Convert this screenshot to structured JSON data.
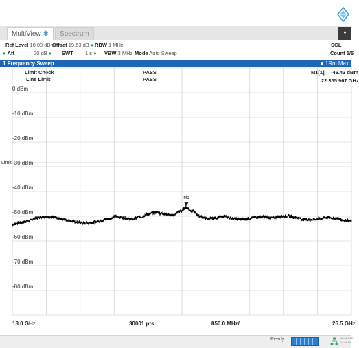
{
  "tabs": [
    {
      "label": "MultiView",
      "marker": "✱"
    },
    {
      "label": "Spectrum"
    }
  ],
  "settings": {
    "ref_level_label": "Ref Level",
    "ref_level_value": "10.00 dBm",
    "offset_label": "Offset",
    "offset_value": "19.53 dB",
    "rbw_label": "RBW",
    "rbw_value": "1 MHz",
    "att_label": "Att",
    "att_value": "20 dB",
    "swt_label": "SWT",
    "swt_value": "1 s",
    "vbw_label": "VBW",
    "vbw_value": "3 MHz",
    "mode_label": "Mode",
    "mode_value": "Auto Sweep",
    "sgl": "SGL",
    "count": "Count 5/5"
  },
  "pane": {
    "title": "1 Frequency Sweep",
    "trace_legend": "1Rm Max",
    "limit_check_label": "Limit Check",
    "limit_check_value": "PASS",
    "line_limit_label": "Line Limit",
    "line_limit_value": "PASS",
    "marker_label": "M1[1]",
    "marker_level": "-46.43 dBm",
    "marker_freq": "22.355 967 GHz",
    "limit_text": "Limit"
  },
  "chart_data": {
    "type": "line",
    "y_tick_labels": [
      "0 dBm",
      "-10 dBm",
      "-20 dBm",
      "-30 dBm",
      "-40 dBm",
      "-50 dBm",
      "-60 dBm",
      "-70 dBm",
      "-80 dBm"
    ],
    "y_ticks": [
      0,
      -10,
      -20,
      -30,
      -40,
      -50,
      -60,
      -70,
      -80
    ],
    "ylim": [
      -90,
      10
    ],
    "xlim": [
      18.0,
      26.5
    ],
    "x_unit": "GHz",
    "grid": true,
    "limit_line_dbm": -28.4,
    "series": [
      {
        "x": [
          18.0,
          18.2,
          18.4,
          18.6,
          18.8,
          19.0,
          19.2,
          19.4,
          19.6,
          19.8,
          20.0,
          20.2,
          20.4,
          20.6,
          20.8,
          21.0,
          21.2,
          21.4,
          21.6,
          21.8,
          22.0,
          22.2,
          22.36,
          22.5,
          22.7,
          22.9,
          23.1,
          23.3,
          23.5,
          23.7,
          23.9,
          24.1,
          24.3,
          24.5,
          24.7,
          24.9,
          25.1,
          25.3,
          25.5,
          25.7,
          25.9,
          26.1,
          26.3,
          26.5
        ],
        "values": [
          -53.3,
          -52.6,
          -51.9,
          -50.7,
          -50.1,
          -50.5,
          -51.0,
          -51.6,
          -52.3,
          -52.9,
          -52.5,
          -51.9,
          -51.0,
          -50.2,
          -50.6,
          -51.3,
          -50.3,
          -49.2,
          -48.4,
          -49.0,
          -49.6,
          -48.1,
          -46.43,
          -47.8,
          -50.0,
          -51.0,
          -50.7,
          -50.1,
          -50.8,
          -51.3,
          -50.9,
          -50.4,
          -50.3,
          -50.7,
          -50.1,
          -49.9,
          -50.5,
          -51.2,
          -51.5,
          -51.0,
          -50.5,
          -50.8,
          -51.6,
          -52.0
        ],
        "color": "#000000"
      }
    ],
    "marker": {
      "label": "M1",
      "x": 22.36,
      "y": -46.43
    }
  },
  "bottom": {
    "start": "18.0 GHz",
    "points": "30001 pts",
    "span_div": "850.0 MHz/",
    "stop": "26.5 GHz"
  },
  "status": {
    "ready": "Ready",
    "date": "13.06.2024",
    "time": "14:20:06"
  },
  "colors": {
    "accent": "#1f66b8",
    "trace": "#000000",
    "grid": "#c8c8c8",
    "limit": "#666666",
    "status_bar": "#2a7fd4"
  },
  "icons": {
    "logo": "rohde-schwarz-diamond-icon",
    "network": "network-icon"
  }
}
